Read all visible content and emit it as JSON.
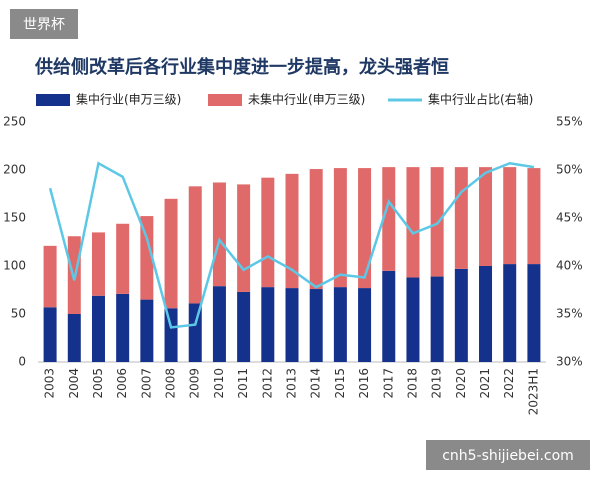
{
  "overlay": {
    "badge": "世界杯",
    "site": "cnh5-shijiebei.com"
  },
  "chart_data": {
    "type": "bar",
    "stacked": true,
    "grid": false,
    "title": "供给侧改革后各行业集中度进一步提高，龙头强者恒",
    "categories": [
      "2003",
      "2004",
      "2005",
      "2006",
      "2007",
      "2008",
      "2009",
      "2010",
      "2011",
      "2012",
      "2013",
      "2014",
      "2015",
      "2016",
      "2017",
      "2018",
      "2019",
      "2020",
      "2021",
      "2022",
      "2023H1"
    ],
    "series": [
      {
        "name": "集中行业(申万三级)",
        "type": "bar",
        "color": "#14318c",
        "values": [
          57,
          50,
          69,
          71,
          65,
          56,
          61,
          79,
          73,
          78,
          77,
          76,
          78,
          77,
          95,
          88,
          89,
          97,
          100,
          102,
          102
        ]
      },
      {
        "name": "未集中行业(申万三级)",
        "type": "bar",
        "color": "#e06a6a",
        "values": [
          64,
          81,
          66,
          73,
          87,
          114,
          122,
          108,
          112,
          114,
          119,
          125,
          124,
          125,
          108,
          115,
          114,
          106,
          103,
          101,
          100
        ]
      },
      {
        "name": "集中行业占比(右轴)",
        "type": "line",
        "axis": "y2",
        "color": "#5cc8e6",
        "values": [
          48.1,
          38.5,
          50.7,
          49.3,
          42.9,
          33.6,
          33.9,
          42.7,
          39.6,
          41.0,
          39.6,
          37.8,
          39.1,
          38.8,
          46.7,
          43.4,
          44.4,
          47.7,
          49.7,
          50.7,
          50.3
        ]
      }
    ],
    "ylim": [
      0,
      250
    ],
    "yticks": [
      0,
      50,
      100,
      150,
      200,
      250
    ],
    "y2lim": [
      30,
      55
    ],
    "y2ticks": [
      {
        "value": 30,
        "label": "30%"
      },
      {
        "value": 35,
        "label": "35%"
      },
      {
        "value": 40,
        "label": "40%"
      },
      {
        "value": 45,
        "label": "45%"
      },
      {
        "value": 50,
        "label": "50%"
      },
      {
        "value": 55,
        "label": "55%"
      }
    ]
  }
}
